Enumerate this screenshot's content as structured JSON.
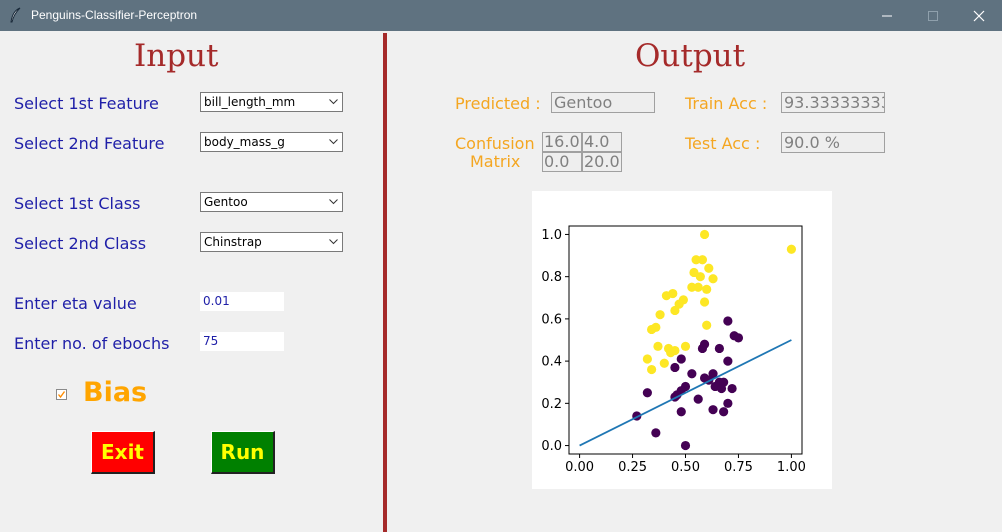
{
  "window": {
    "title": "Penguins-Classifier-Perceptron"
  },
  "input": {
    "heading": "Input",
    "feature1": {
      "label": "Select 1st Feature",
      "value": "bill_length_mm"
    },
    "feature2": {
      "label": "Select 2nd Feature",
      "value": "body_mass_g"
    },
    "class1": {
      "label": "Select 1st Class",
      "value": "Gentoo"
    },
    "class2": {
      "label": "Select 2nd Class",
      "value": "Chinstrap"
    },
    "eta": {
      "label": "Enter eta value",
      "value": "0.01"
    },
    "epochs": {
      "label": "Enter no. of ebochs",
      "value": "75"
    },
    "bias": {
      "label": "Bias",
      "checked": true
    },
    "exit_label": "Exit",
    "run_label": "Run",
    "colors": {
      "exit": "#ff0000",
      "run": "#008000"
    }
  },
  "output": {
    "heading": "Output",
    "predicted": {
      "label": "Predicted :",
      "value": "Gentoo"
    },
    "train_acc": {
      "label": "Train Acc :",
      "value": "93.33333333"
    },
    "test_acc": {
      "label": "Test  Acc :",
      "value": "90.0 %"
    },
    "confusion": {
      "label_line1": "Confusion",
      "label_line2": "Matrix",
      "cells": [
        [
          "16.0",
          "4.0"
        ],
        [
          "0.0",
          "20.0"
        ]
      ]
    }
  },
  "chart_data": {
    "type": "scatter",
    "title": "",
    "xlabel": "",
    "ylabel": "",
    "xlim": [
      -0.05,
      1.05
    ],
    "ylim": [
      -0.04,
      1.04
    ],
    "xticks": [
      "0.00",
      "0.25",
      "0.50",
      "0.75",
      "1.00"
    ],
    "yticks": [
      "0.0",
      "0.2",
      "0.4",
      "0.6",
      "0.8",
      "1.0"
    ],
    "grid": false,
    "series": [
      {
        "color": "#fde725",
        "points": [
          [
            0.59,
            1.0
          ],
          [
            1.0,
            0.93
          ],
          [
            0.55,
            0.88
          ],
          [
            0.58,
            0.88
          ],
          [
            0.61,
            0.84
          ],
          [
            0.54,
            0.82
          ],
          [
            0.57,
            0.8
          ],
          [
            0.63,
            0.79
          ],
          [
            0.53,
            0.75
          ],
          [
            0.56,
            0.75
          ],
          [
            0.6,
            0.74
          ],
          [
            0.44,
            0.72
          ],
          [
            0.41,
            0.71
          ],
          [
            0.49,
            0.69
          ],
          [
            0.47,
            0.67
          ],
          [
            0.59,
            0.68
          ],
          [
            0.45,
            0.64
          ],
          [
            0.38,
            0.62
          ],
          [
            0.36,
            0.56
          ],
          [
            0.6,
            0.57
          ],
          [
            0.34,
            0.55
          ],
          [
            0.37,
            0.47
          ],
          [
            0.42,
            0.46
          ],
          [
            0.45,
            0.45
          ],
          [
            0.43,
            0.44
          ],
          [
            0.5,
            0.47
          ],
          [
            0.32,
            0.41
          ],
          [
            0.4,
            0.39
          ],
          [
            0.34,
            0.36
          ]
        ]
      },
      {
        "color": "#440154",
        "points": [
          [
            0.7,
            0.59
          ],
          [
            0.73,
            0.52
          ],
          [
            0.75,
            0.51
          ],
          [
            0.59,
            0.48
          ],
          [
            0.58,
            0.46
          ],
          [
            0.66,
            0.46
          ],
          [
            0.48,
            0.41
          ],
          [
            0.7,
            0.4
          ],
          [
            0.45,
            0.37
          ],
          [
            0.53,
            0.34
          ],
          [
            0.63,
            0.34
          ],
          [
            0.59,
            0.32
          ],
          [
            0.61,
            0.31
          ],
          [
            0.66,
            0.3
          ],
          [
            0.68,
            0.3
          ],
          [
            0.5,
            0.28
          ],
          [
            0.64,
            0.28
          ],
          [
            0.67,
            0.27
          ],
          [
            0.72,
            0.27
          ],
          [
            0.48,
            0.26
          ],
          [
            0.32,
            0.25
          ],
          [
            0.45,
            0.23
          ],
          [
            0.46,
            0.24
          ],
          [
            0.56,
            0.22
          ],
          [
            0.7,
            0.2
          ],
          [
            0.27,
            0.14
          ],
          [
            0.48,
            0.16
          ],
          [
            0.63,
            0.17
          ],
          [
            0.68,
            0.16
          ],
          [
            0.36,
            0.06
          ],
          [
            0.5,
            0.0
          ]
        ]
      },
      {
        "color": "#1f77b4",
        "line": [
          [
            0.0,
            0.0
          ],
          [
            1.0,
            0.5
          ]
        ]
      }
    ]
  }
}
